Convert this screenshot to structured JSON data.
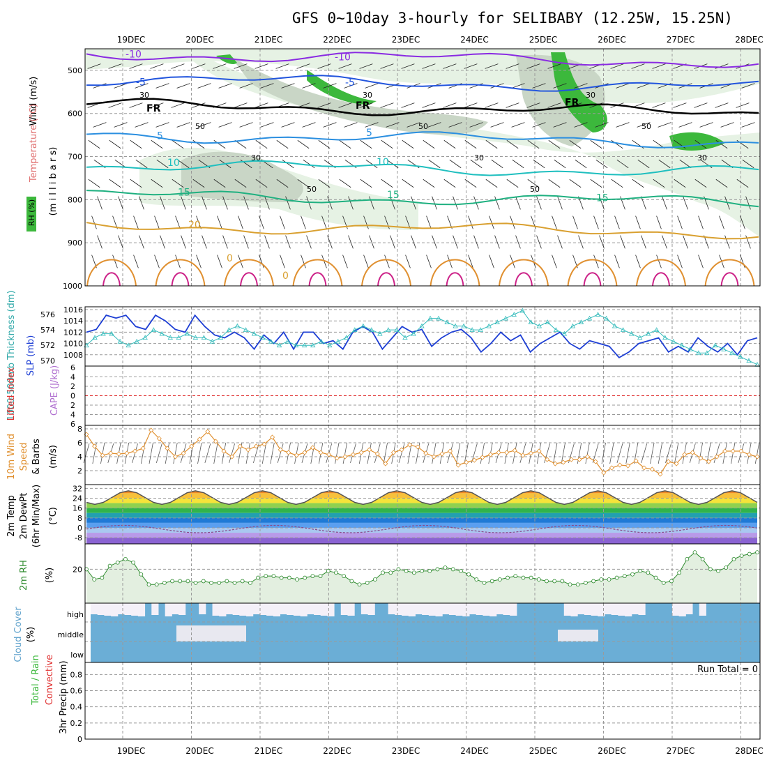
{
  "title": "GFS 0~10day 3-hourly for SELIBABY (12.25W, 15.25N)",
  "chart_data": {
    "type": "meteogram",
    "days": [
      "19DEC",
      "20DEC",
      "21DEC",
      "22DEC",
      "23DEC",
      "24DEC",
      "25DEC",
      "26DEC",
      "27DEC",
      "28DEC"
    ],
    "colors": {
      "rh_green": "#3cb83c",
      "slp": "#1e3fd4",
      "thickness": "#33bbbb",
      "wind": "#e09030",
      "dewpt": "#8a4a8a",
      "rh2m": "#2e8b2e",
      "cloud": "#6baed6",
      "cloud_bg": "#f4f0f8"
    },
    "upper": {
      "ylabels": [
        "Wind (m/s)",
        "Temperature (°C)",
        "RH (%)",
        "(m i l l i b a r s)"
      ],
      "yticks": [
        500,
        600,
        700,
        800,
        900,
        1000
      ],
      "ylim": [
        450,
        1000
      ],
      "isotherms": [
        {
          "value": -10,
          "level": 462,
          "color": "#8a2be2",
          "labels": [
            "-10",
            "-10"
          ]
        },
        {
          "value": -5,
          "level": 520,
          "color": "#2255dd",
          "labels": [
            "-5",
            "-5"
          ]
        },
        {
          "value": 0,
          "level": 580,
          "color": "#000000",
          "labels": [
            "FR",
            "FR",
            "FR"
          ]
        },
        {
          "value": 5,
          "level": 650,
          "color": "#2b8fe0",
          "labels": [
            "5",
            "5"
          ]
        },
        {
          "value": 10,
          "level": 720,
          "color": "#1fbfbf",
          "labels": [
            "10",
            "10"
          ]
        },
        {
          "value": 15,
          "level": 790,
          "color": "#1fb080",
          "labels": [
            "15",
            "15",
            "15"
          ]
        },
        {
          "value": 20,
          "level": 860,
          "color": "#d9a030",
          "labels": [
            "20"
          ]
        }
      ],
      "rh_labels": [
        "30",
        "50",
        "30",
        "50",
        "30",
        "50",
        "30",
        "50",
        "30",
        "50",
        "30"
      ],
      "near_sfc_labels": [
        "0",
        "0"
      ]
    },
    "slp": {
      "ylabel_left": "1000-500mb Thickness (dm)",
      "ylabel_right": "SLP (mb)",
      "slp_ticks": [
        1016,
        1014,
        1012,
        1010,
        1008
      ],
      "slp_ylim": [
        1006,
        1016.5
      ],
      "thk_ticks": [
        576,
        574,
        572,
        570
      ],
      "thk_ylim": [
        569.3,
        577
      ],
      "slp": [
        1012,
        1012.5,
        1015,
        1014.5,
        1015,
        1013,
        1012.5,
        1015,
        1014,
        1012.5,
        1012,
        1015,
        1013,
        1011.5,
        1011,
        1012,
        1011,
        1009,
        1011.5,
        1010,
        1012,
        1009,
        1012,
        1012,
        1010,
        1010.5,
        1009,
        1012,
        1013,
        1012,
        1009,
        1011,
        1013,
        1012,
        1012.5,
        1009.5,
        1011,
        1012,
        1012.5,
        1011,
        1008.5,
        1010,
        1012,
        1010.5,
        1011.5,
        1008.5,
        1010,
        1011,
        1012,
        1010,
        1009,
        1010.5,
        1010,
        1009.5,
        1007.5,
        1008.5,
        1010,
        1010.5,
        1011,
        1008.5,
        1009.5,
        1008.5,
        1011,
        1009.5,
        1008.5,
        1010,
        1008,
        1010.5,
        1011
      ],
      "thickness": [
        572,
        573,
        573.5,
        573.5,
        572.5,
        572,
        572.5,
        573,
        574,
        573.5,
        573,
        573,
        573.5,
        573,
        573,
        572.5,
        573,
        574,
        574.5,
        574,
        573.5,
        573,
        572.5,
        572,
        572.5,
        572,
        572,
        572,
        572.5,
        572,
        572.5,
        573,
        574,
        574.5,
        574,
        573.5,
        574,
        574,
        573,
        573.5,
        574.5,
        575.5,
        575.5,
        575,
        574.5,
        574.5,
        574,
        574,
        574.5,
        575,
        575.5,
        576,
        576.5,
        575,
        574.5,
        575,
        574,
        573.5,
        574.5,
        575,
        575.5,
        576,
        575.5,
        574.5,
        574,
        573.5,
        573,
        573.5,
        574,
        573,
        572.5,
        572,
        571.5,
        571,
        571,
        572,
        571.5,
        571,
        570.5,
        570,
        569.5
      ]
    },
    "stability": {
      "ylabels": [
        "Lifted Index",
        "CAPE (J/kg)"
      ],
      "yticks": [
        "6",
        "4",
        "2",
        "0",
        "2",
        "4",
        "6"
      ],
      "ylim": [
        -6,
        6
      ],
      "li_zero_color": "#e03030"
    },
    "wind10m": {
      "ylabels": [
        "10m Wind",
        "Speed",
        "& Barbs",
        "(m/s)"
      ],
      "yticks": [
        8,
        6,
        4,
        2
      ],
      "ylim": [
        0,
        8.5
      ],
      "speed": [
        7.2,
        5.5,
        4.2,
        4.5,
        4.4,
        4.5,
        4.8,
        5.2,
        7.8,
        6.6,
        5.2,
        4.0,
        4.5,
        5.5,
        6.5,
        7.6,
        6.2,
        4.8,
        4.0,
        5.5,
        5.0,
        5.5,
        5.8,
        6.8,
        5.0,
        4.6,
        4.2,
        4.6,
        5.3,
        4.6,
        4.3,
        3.8,
        4.0,
        4.3,
        4.6,
        5.0,
        4.4,
        3.0,
        4.6,
        5.0,
        5.7,
        5.4,
        4.5,
        4.0,
        4.4,
        4.8,
        2.8,
        3.2,
        3.5,
        3.9,
        4.3,
        4.6,
        4.6,
        4.9,
        4.2,
        4.5,
        4.8,
        3.6,
        3.0,
        3.2,
        3.6,
        3.6,
        4.0,
        3.3,
        1.7,
        2.4,
        2.8,
        2.7,
        3.4,
        2.4,
        2.2,
        1.5,
        3.3,
        3.0,
        4.3,
        4.6,
        3.8,
        3.3,
        4.0,
        4.8,
        4.8,
        4.8,
        4.3,
        4.0
      ]
    },
    "temp2m": {
      "ylabels": [
        "2m Temp",
        "2m DewPt",
        "(6hr Min/Max)",
        "(°C)"
      ],
      "yticks": [
        32,
        24,
        16,
        8,
        0,
        -8
      ],
      "ylim": [
        -13,
        35
      ],
      "temp_min": 19,
      "temp_max": 30,
      "dewpt_range": [
        -4,
        2
      ]
    },
    "rh2m": {
      "ylabels": [
        "2m RH",
        "(%)"
      ],
      "yticks": [
        20
      ],
      "ylim": [
        0,
        35
      ],
      "values": [
        20,
        14,
        15,
        22,
        24,
        26,
        24,
        17,
        11,
        11,
        12,
        13,
        13,
        13,
        12,
        13,
        12,
        12,
        13,
        12,
        13,
        12,
        15,
        16,
        16,
        15,
        15,
        14,
        15,
        16,
        16,
        19,
        18,
        16,
        13,
        11,
        12,
        14,
        18,
        18,
        20,
        19,
        18,
        19,
        19,
        20,
        21,
        20,
        19,
        17,
        14,
        12,
        13,
        14,
        15,
        16,
        15,
        15,
        14,
        13,
        13,
        13,
        11,
        11,
        12,
        13,
        14,
        14,
        15,
        16,
        17,
        19,
        18,
        15,
        12,
        13,
        18,
        26,
        30,
        26,
        20,
        19,
        21,
        26,
        28,
        29,
        30
      ]
    },
    "cloud": {
      "ylabels": [
        "Cloud Cover",
        "(%)"
      ],
      "levels": [
        "high",
        "middle",
        "low"
      ]
    },
    "precip": {
      "ylabels": [
        "Total / Rain",
        "Convective",
        "3hr Precip (mm)"
      ],
      "yticks": [
        0.8,
        0.6,
        0.4,
        0.2,
        0
      ],
      "ylim": [
        0,
        0.95
      ],
      "run_total": "Run Total = 0"
    }
  }
}
